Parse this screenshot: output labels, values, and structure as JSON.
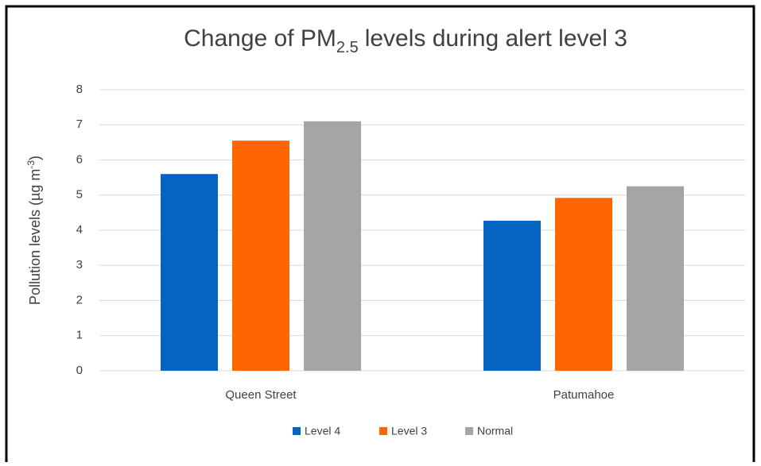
{
  "chart_data": {
    "type": "bar",
    "title": {
      "main": "Change of PM",
      "subscript": "2.5",
      "rest": "levels during alert level 3"
    },
    "y_label": {
      "main": "Pollution levels (µg m",
      "superscript": "-3",
      "end": ")"
    },
    "categories": [
      "Queen Street",
      "Patumahoe"
    ],
    "series": [
      {
        "name": "Level 4",
        "color": "#0563c1",
        "values": [
          5.6,
          4.27
        ]
      },
      {
        "name": "Level 3",
        "color": "#ff6600",
        "values": [
          6.55,
          4.92
        ]
      },
      {
        "name": "Normal",
        "color": "#a5a5a5",
        "values": [
          7.1,
          5.25
        ]
      }
    ],
    "ylim": [
      0,
      8
    ],
    "yticks": [
      0,
      1,
      2,
      3,
      4,
      5,
      6,
      7,
      8
    ],
    "grid": true,
    "legend": "bottom"
  }
}
